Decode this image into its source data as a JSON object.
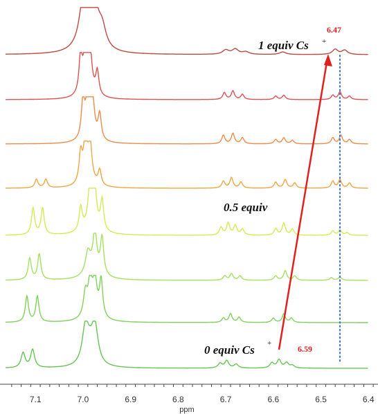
{
  "chart_data": {
    "type": "line",
    "title": "",
    "xlabel": "ppm",
    "ylabel": "",
    "xlim": [
      7.16,
      6.38
    ],
    "x_reversed": true,
    "grid": false,
    "legend": "none",
    "x_ticks": [
      {
        "value": 7.1,
        "label": "7.1"
      },
      {
        "value": 7.0,
        "label": "7.0"
      },
      {
        "value": 6.9,
        "label": "6.9"
      },
      {
        "value": 6.8,
        "label": "6.8"
      },
      {
        "value": 6.7,
        "label": "6.7"
      },
      {
        "value": 6.6,
        "label": "6.6"
      },
      {
        "value": 6.5,
        "label": "6.5"
      },
      {
        "value": 6.4,
        "label": "6.4"
      }
    ],
    "series": [
      {
        "color": "#66c455",
        "peaks": [
          [
            7.126,
            0.35,
            0.005
          ],
          [
            7.106,
            0.42,
            0.005
          ],
          [
            6.995,
            0.82,
            0.008
          ],
          [
            6.975,
            0.82,
            0.008
          ],
          [
            6.985,
            0.35,
            0.012
          ],
          [
            6.712,
            0.11,
            0.005
          ],
          [
            6.698,
            0.17,
            0.005
          ],
          [
            6.678,
            0.09,
            0.005
          ],
          [
            6.603,
            0.12,
            0.005
          ],
          [
            6.588,
            0.19,
            0.005
          ],
          [
            6.572,
            0.12,
            0.005
          ],
          [
            6.56,
            0.06,
            0.005
          ]
        ]
      },
      {
        "color": "#7fd15a",
        "peaks": [
          [
            7.118,
            0.6,
            0.004
          ],
          [
            7.096,
            0.6,
            0.004
          ],
          [
            6.995,
            0.55,
            0.005
          ],
          [
            6.985,
            0.75,
            0.004
          ],
          [
            6.975,
            0.72,
            0.005
          ],
          [
            6.962,
            0.85,
            0.004
          ],
          [
            6.98,
            0.3,
            0.015
          ],
          [
            6.705,
            0.1,
            0.004
          ],
          [
            6.69,
            0.2,
            0.004
          ],
          [
            6.672,
            0.12,
            0.004
          ],
          [
            6.6,
            0.1,
            0.004
          ],
          [
            6.578,
            0.2,
            0.004
          ],
          [
            6.562,
            0.1,
            0.004
          ]
        ]
      },
      {
        "color": "#a5e060",
        "peaks": [
          [
            7.112,
            0.5,
            0.004
          ],
          [
            7.092,
            0.6,
            0.004
          ],
          [
            6.99,
            0.45,
            0.006
          ],
          [
            6.975,
            0.85,
            0.004
          ],
          [
            6.96,
            0.85,
            0.004
          ],
          [
            6.978,
            0.35,
            0.016
          ],
          [
            6.702,
            0.1,
            0.004
          ],
          [
            6.688,
            0.15,
            0.004
          ],
          [
            6.67,
            0.1,
            0.004
          ],
          [
            6.595,
            0.1,
            0.004
          ],
          [
            6.575,
            0.22,
            0.004
          ],
          [
            6.555,
            0.1,
            0.004
          ],
          [
            6.478,
            0.06,
            0.004
          ],
          [
            6.46,
            0.08,
            0.004
          ]
        ]
      },
      {
        "color": "#d2ec55",
        "peaks": [
          [
            7.105,
            0.62,
            0.004
          ],
          [
            7.085,
            0.62,
            0.004
          ],
          [
            7.005,
            0.55,
            0.004
          ],
          [
            6.985,
            1.0,
            0.004
          ],
          [
            6.975,
            0.75,
            0.004
          ],
          [
            6.96,
            0.7,
            0.004
          ],
          [
            6.982,
            0.4,
            0.014
          ],
          [
            6.71,
            0.18,
            0.004
          ],
          [
            6.695,
            0.28,
            0.004
          ],
          [
            6.68,
            0.22,
            0.004
          ],
          [
            6.665,
            0.14,
            0.004
          ],
          [
            6.595,
            0.15,
            0.004
          ],
          [
            6.578,
            0.28,
            0.004
          ],
          [
            6.56,
            0.14,
            0.004
          ],
          [
            6.475,
            0.1,
            0.004
          ],
          [
            6.46,
            0.12,
            0.004
          ],
          [
            6.445,
            0.06,
            0.004
          ]
        ]
      },
      {
        "color": "#f0a540",
        "peaks": [
          [
            7.098,
            0.2,
            0.004
          ],
          [
            7.078,
            0.2,
            0.004
          ],
          [
            7.005,
            0.68,
            0.004
          ],
          [
            6.995,
            1.0,
            0.004
          ],
          [
            6.985,
            0.75,
            0.004
          ],
          [
            6.965,
            0.35,
            0.004
          ],
          [
            6.99,
            0.35,
            0.012
          ],
          [
            6.705,
            0.16,
            0.004
          ],
          [
            6.688,
            0.24,
            0.004
          ],
          [
            6.668,
            0.14,
            0.004
          ],
          [
            6.595,
            0.14,
            0.004
          ],
          [
            6.575,
            0.2,
            0.004
          ],
          [
            6.555,
            0.12,
            0.004
          ],
          [
            6.475,
            0.16,
            0.004
          ],
          [
            6.46,
            0.2,
            0.004
          ],
          [
            6.44,
            0.12,
            0.004
          ]
        ]
      },
      {
        "color": "#f08a48",
        "peaks": [
          [
            7.0,
            0.9,
            0.004
          ],
          [
            6.99,
            1.0,
            0.004
          ],
          [
            6.98,
            0.75,
            0.004
          ],
          [
            6.965,
            0.58,
            0.004
          ],
          [
            6.985,
            0.4,
            0.012
          ],
          [
            6.705,
            0.2,
            0.004
          ],
          [
            6.685,
            0.24,
            0.004
          ],
          [
            6.665,
            0.14,
            0.004
          ],
          [
            6.595,
            0.1,
            0.004
          ],
          [
            6.578,
            0.14,
            0.004
          ],
          [
            6.56,
            0.08,
            0.004
          ],
          [
            6.475,
            0.14,
            0.004
          ],
          [
            6.458,
            0.2,
            0.004
          ],
          [
            6.44,
            0.1,
            0.004
          ]
        ]
      },
      {
        "color": "#e05050",
        "peaks": [
          [
            7.005,
            0.9,
            0.004
          ],
          [
            6.995,
            1.0,
            0.004
          ],
          [
            6.985,
            0.8,
            0.004
          ],
          [
            6.97,
            0.55,
            0.004
          ],
          [
            6.99,
            0.4,
            0.012
          ],
          [
            6.703,
            0.16,
            0.004
          ],
          [
            6.685,
            0.2,
            0.004
          ],
          [
            6.665,
            0.12,
            0.004
          ],
          [
            6.595,
            0.08,
            0.004
          ],
          [
            6.578,
            0.1,
            0.004
          ],
          [
            6.475,
            0.1,
            0.004
          ],
          [
            6.46,
            0.18,
            0.004
          ],
          [
            6.44,
            0.08,
            0.004
          ]
        ]
      },
      {
        "color": "#c0483f",
        "peaks": [
          [
            7.0,
            0.85,
            0.01
          ],
          [
            6.985,
            0.75,
            0.01
          ],
          [
            6.975,
            0.6,
            0.01
          ],
          [
            6.96,
            0.45,
            0.01
          ],
          [
            6.99,
            0.3,
            0.02
          ],
          [
            6.7,
            0.1,
            0.008
          ],
          [
            6.68,
            0.12,
            0.008
          ],
          [
            6.658,
            0.06,
            0.008
          ],
          [
            6.58,
            0.06,
            0.008
          ],
          [
            6.47,
            0.12,
            0.007
          ],
          [
            6.45,
            0.1,
            0.007
          ]
        ]
      }
    ],
    "annotations": {
      "top_label": "1 equiv Cs",
      "middle_label": "0.5 equiv",
      "bottom_label": "0 equiv Cs",
      "superscript": "+",
      "value_top": "6.47",
      "value_bottom": "6.59",
      "arrow_color": "#e02020",
      "guide_color": "#3a6fc0",
      "guide_x": 6.46
    }
  }
}
